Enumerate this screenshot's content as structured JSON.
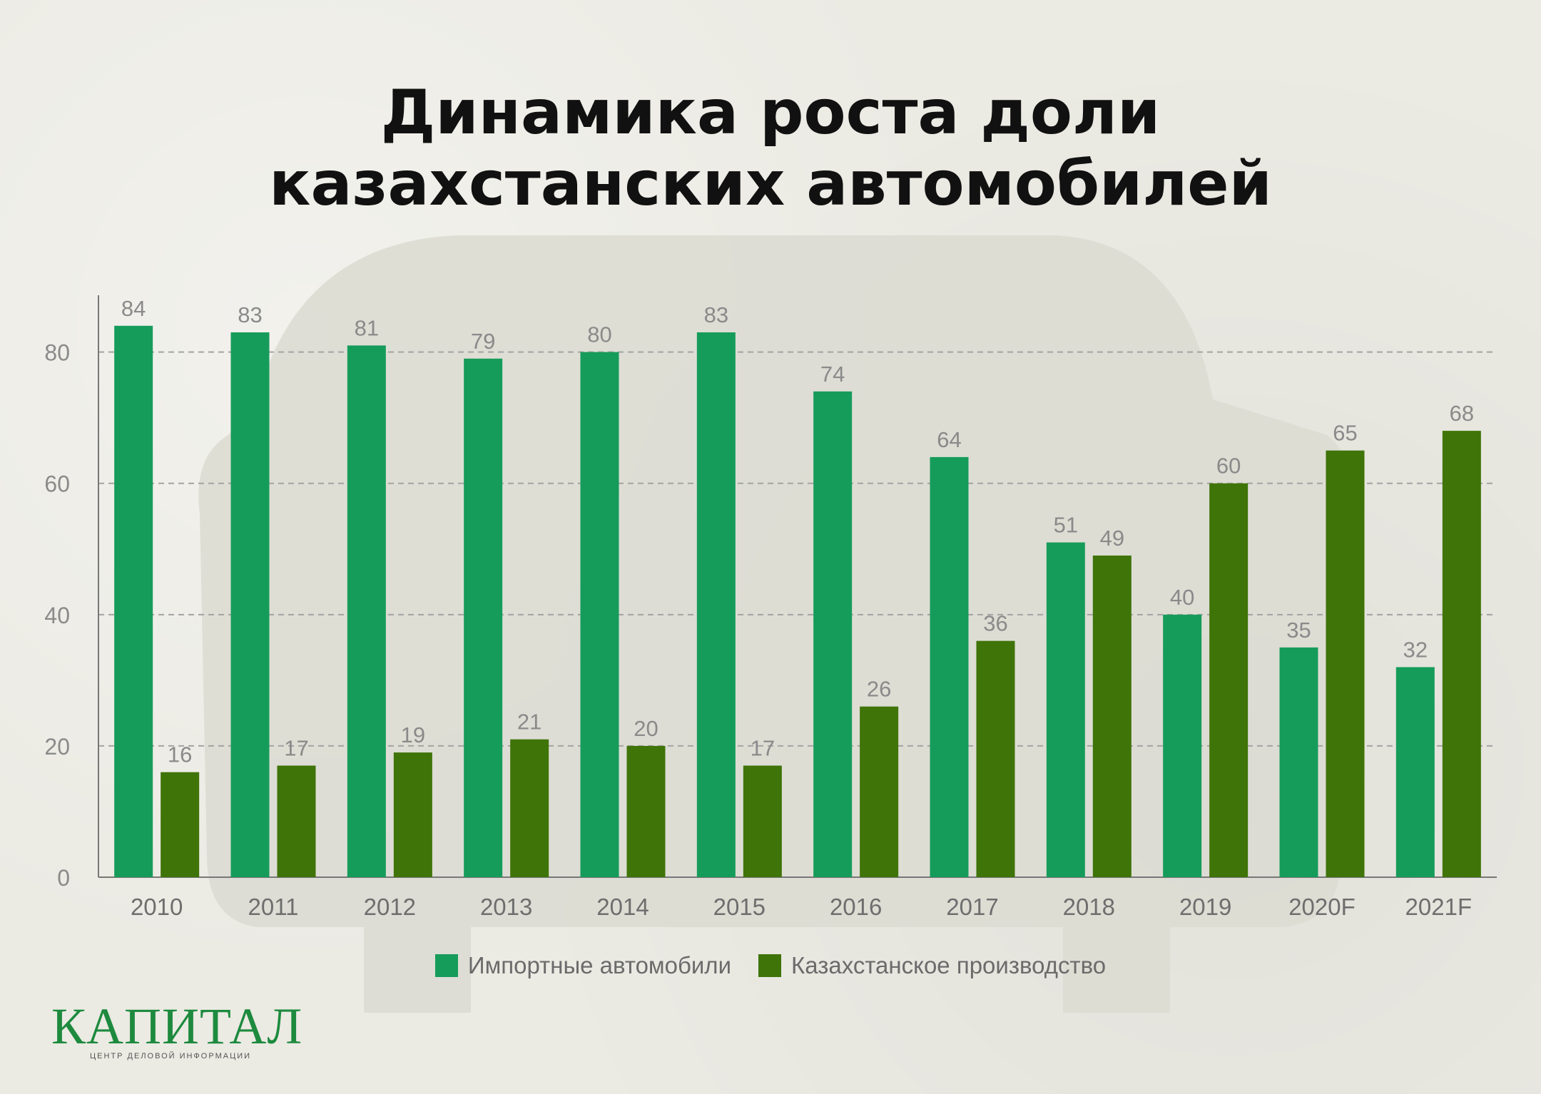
{
  "header": {
    "title_line1": "Динамика роста доли",
    "title_line2": "казахстанских автомобилей"
  },
  "colors": {
    "import": "#169c5a",
    "kz": "#3f7408",
    "axis": "#777777",
    "grid": "#a3a3a3",
    "label": "#8a8a8a",
    "background": "#ebeae3"
  },
  "chart_data": {
    "type": "bar",
    "categories": [
      "2010",
      "2011",
      "2012",
      "2013",
      "2014",
      "2015",
      "2016",
      "2017",
      "2018",
      "2019",
      "2020F",
      "2021F"
    ],
    "series": [
      {
        "name": "Импортные автомобили",
        "values": [
          84,
          83,
          81,
          79,
          80,
          83,
          74,
          64,
          51,
          40,
          35,
          32
        ]
      },
      {
        "name": "Казахстанское производство",
        "values": [
          16,
          17,
          19,
          21,
          20,
          17,
          26,
          36,
          49,
          60,
          65,
          68
        ]
      }
    ],
    "ylim": [
      0,
      88
    ],
    "yticks": [
      0,
      20,
      40,
      60,
      80
    ],
    "grid": true,
    "legend_position": "bottom-center",
    "data_labels": true
  },
  "legend": {
    "import_label": "Импортные автомобили",
    "kz_label": "Казахстанское производство"
  },
  "logo": {
    "name": "КАПИТАЛ",
    "subtitle": "ЦЕНТР ДЕЛОВОЙ ИНФОРМАЦИИ"
  }
}
